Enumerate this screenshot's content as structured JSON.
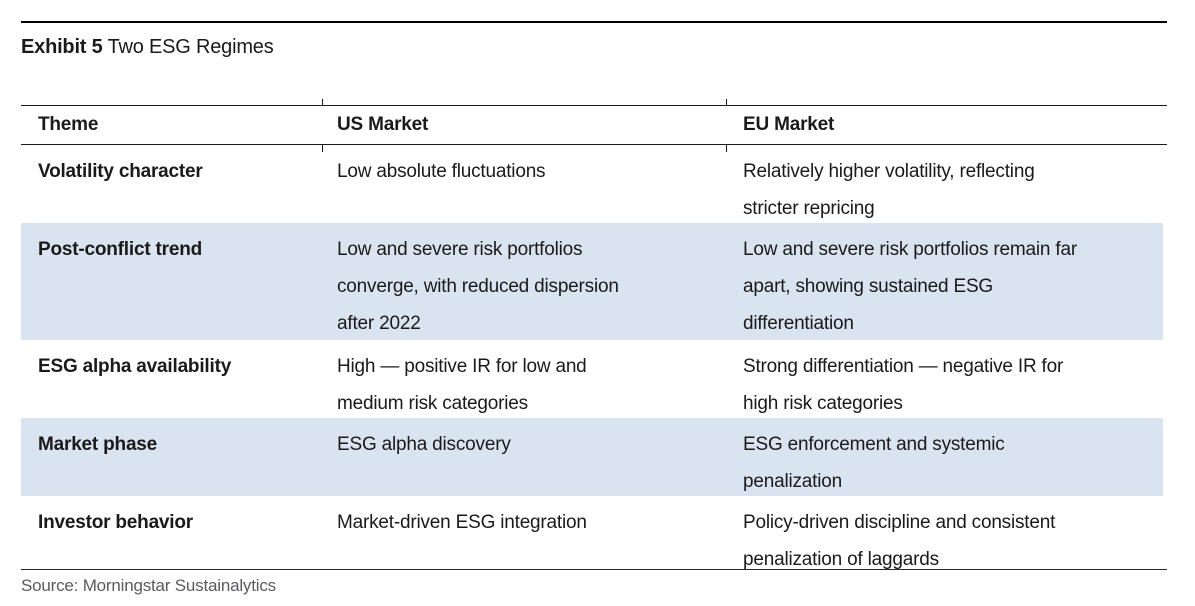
{
  "exhibit": {
    "label": "Exhibit 5",
    "title": "Two ESG Regimes"
  },
  "table": {
    "columns": [
      "Theme",
      "US Market",
      "EU Market"
    ],
    "rows": [
      {
        "theme": "Volatility character",
        "us": [
          "Low absolute fluctuations"
        ],
        "eu": [
          "Relatively higher volatility, reflecting",
          "stricter repricing"
        ]
      },
      {
        "theme": "Post-conflict trend",
        "us": [
          "Low and severe risk portfolios",
          "converge, with reduced dispersion",
          "after 2022"
        ],
        "eu": [
          "Low and severe risk portfolios remain far",
          "apart, showing sustained ESG",
          "differentiation"
        ]
      },
      {
        "theme": "ESG alpha availability",
        "us": [
          "High — positive IR for low and",
          "medium risk categories"
        ],
        "eu": [
          "Strong differentiation — negative IR for",
          "high risk categories"
        ]
      },
      {
        "theme": "Market phase",
        "us": [
          "ESG alpha discovery"
        ],
        "eu": [
          "ESG enforcement and systemic",
          "penalization"
        ]
      },
      {
        "theme": "Investor behavior",
        "us": [
          "Market-driven ESG integration"
        ],
        "eu": [
          "Policy-driven discipline and consistent",
          "penalization of laggards"
        ]
      }
    ],
    "shaded_row_indices": [
      1,
      3
    ],
    "colors": {
      "row_shade": "#dae4f0",
      "text": "#1a1a1a",
      "rule": "#000000",
      "source_text": "#5a5b5f"
    }
  },
  "source": "Source: Morningstar Sustainalytics"
}
